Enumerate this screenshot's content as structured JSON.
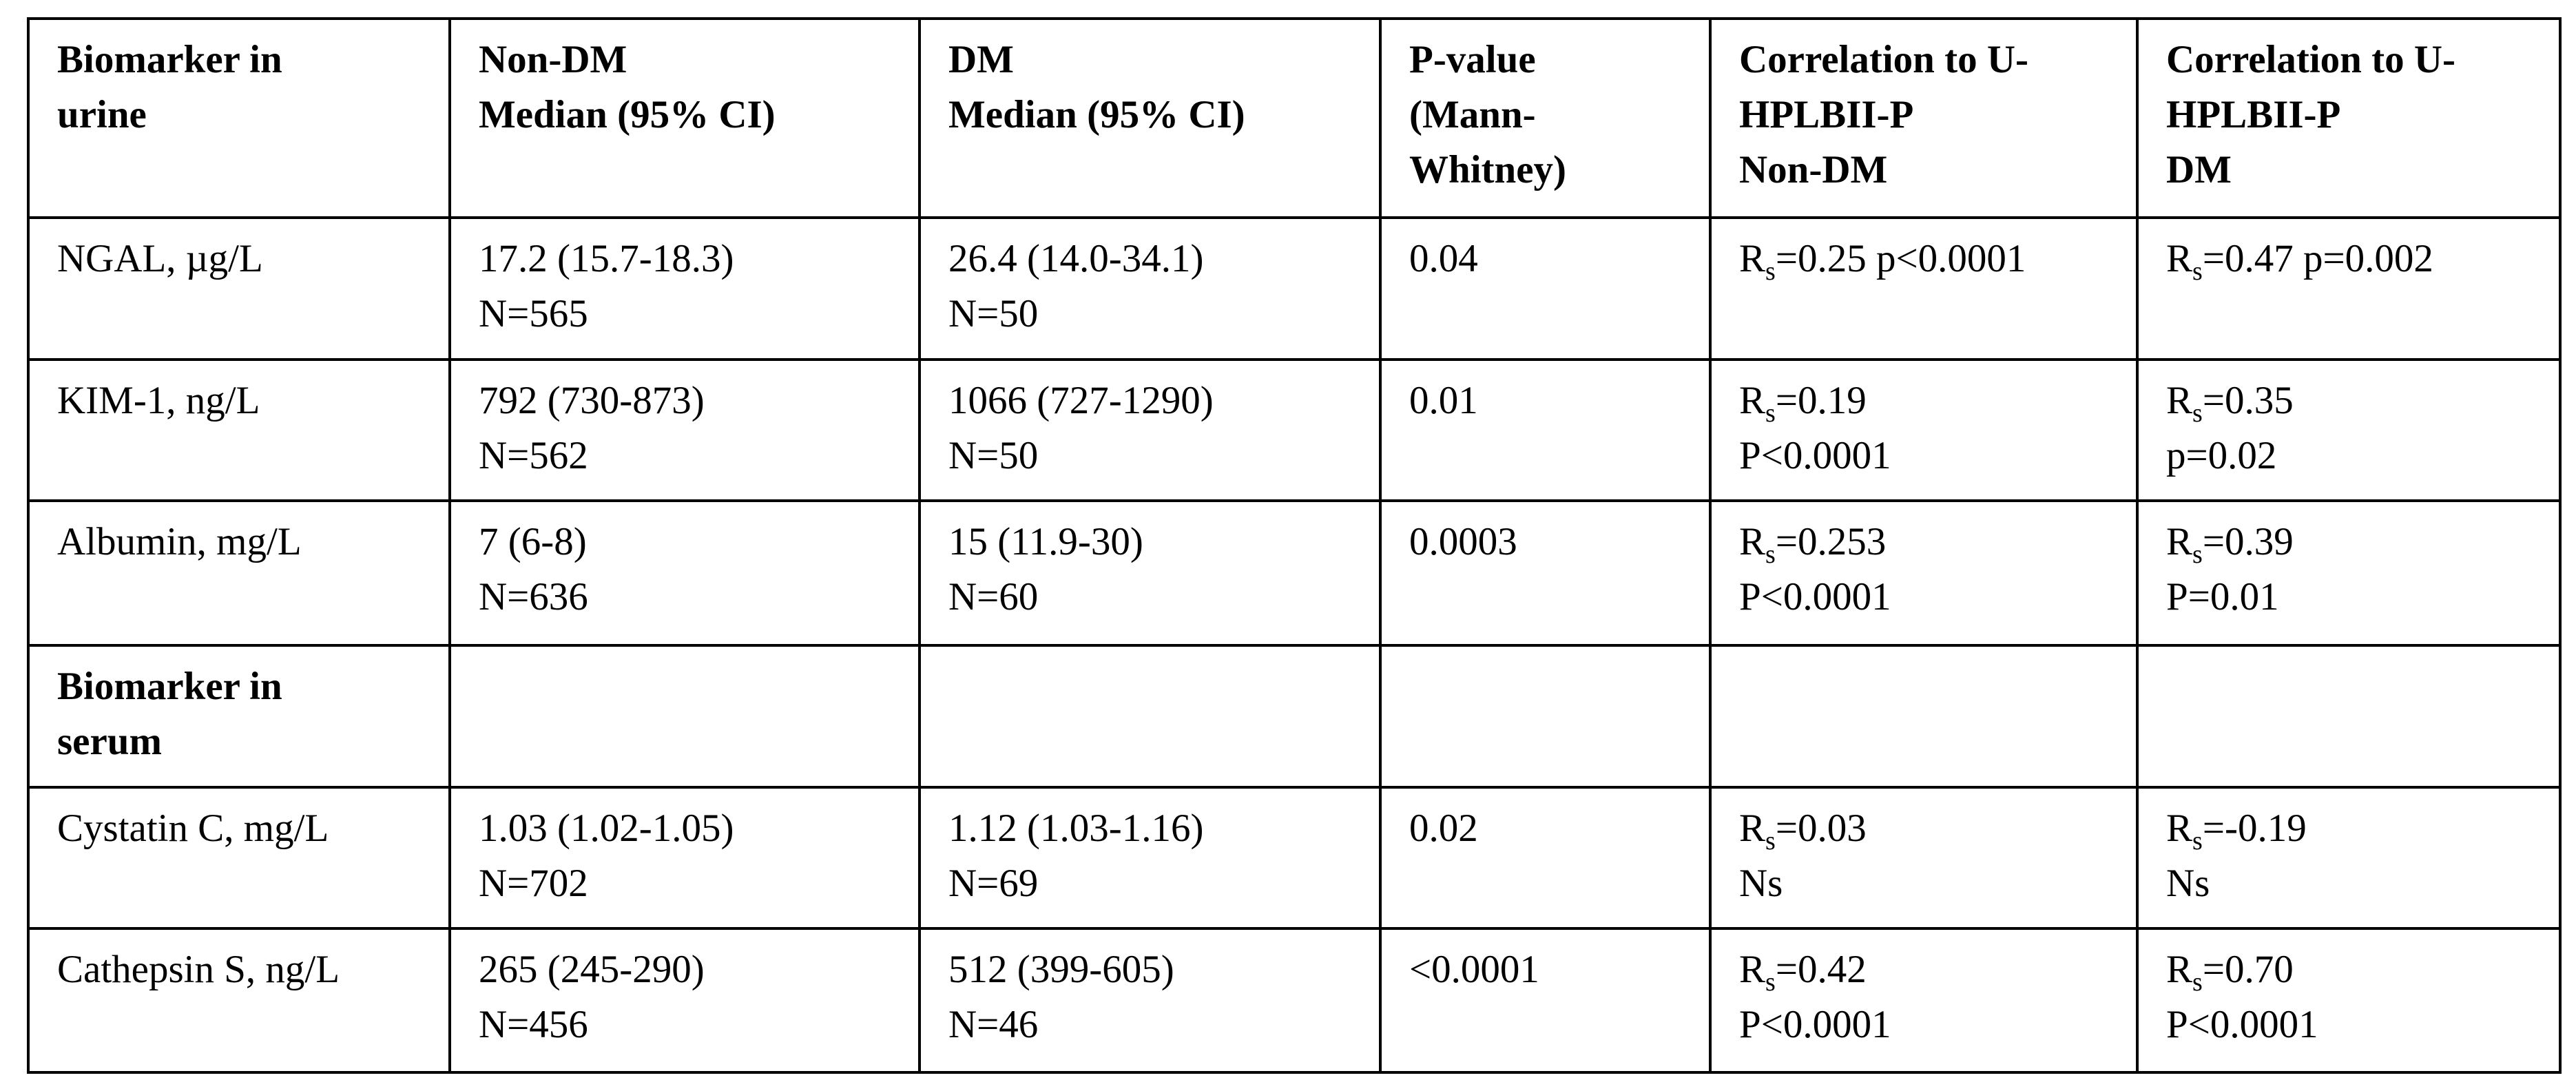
{
  "header": [
    [
      "Biomarker in",
      "urine"
    ],
    [
      "Non-DM",
      "Median (95% CI)"
    ],
    [
      "DM",
      "Median (95% CI)"
    ],
    [
      "P-value",
      "(Mann-",
      "Whitney)"
    ],
    [
      "Correlation to U-",
      "HPLBII-P",
      "Non-DM"
    ],
    [
      "Correlation to U-",
      "HPLBII-P",
      "DM"
    ]
  ],
  "rows": [
    {
      "name": "NGAL, µg/L",
      "nondm": "17.2 (15.7-18.3)",
      "nondm_n": "N=565",
      "dm": "26.4 (14.0-34.1)",
      "dm_n": "N=50",
      "p": "0.04",
      "c1_r": "=0.25 p<0.0001",
      "c1_p": "",
      "c2_r": "=0.47 p=0.002",
      "c2_p": ""
    },
    {
      "name": "KIM-1, ng/L",
      "nondm": "792 (730-873)",
      "nondm_n": "N=562",
      "dm": "1066 (727-1290)",
      "dm_n": "N=50",
      "p": "0.01",
      "c1_r": "=0.19",
      "c1_p": "P<0.0001",
      "c2_r": "=0.35",
      "c2_p": "p=0.02"
    },
    {
      "name": "Albumin, mg/L",
      "nondm": "7 (6-8)",
      "nondm_n": "N=636",
      "dm": "15 (11.9-30)",
      "dm_n": "N=60",
      "p": "0.0003",
      "c1_r": "=0.253",
      "c1_p": "P<0.0001",
      "c2_r": "=0.39",
      "c2_p": "P=0.01"
    }
  ],
  "section2": [
    "Biomarker in",
    "serum"
  ],
  "rows2": [
    {
      "name": "Cystatin C, mg/L",
      "nondm": "1.03 (1.02-1.05)",
      "nondm_n": "N=702",
      "dm": "1.12 (1.03-1.16)",
      "dm_n": "N=69",
      "p": "0.02",
      "c1_r": "=0.03",
      "c1_p": "Ns",
      "c2_r": "=-0.19",
      "c2_p": "Ns"
    },
    {
      "name": "Cathepsin S, ng/L",
      "nondm": "265 (245-290)",
      "nondm_n": "N=456",
      "dm": "512 (399-605)",
      "dm_n": "N=46",
      "p": "<0.0001",
      "c1_r": "=0.42",
      "c1_p": "P<0.0001",
      "c2_r": "=0.70",
      "c2_p": "P<0.0001"
    }
  ],
  "rs_label": {
    "main": "R",
    "sub": "s"
  }
}
